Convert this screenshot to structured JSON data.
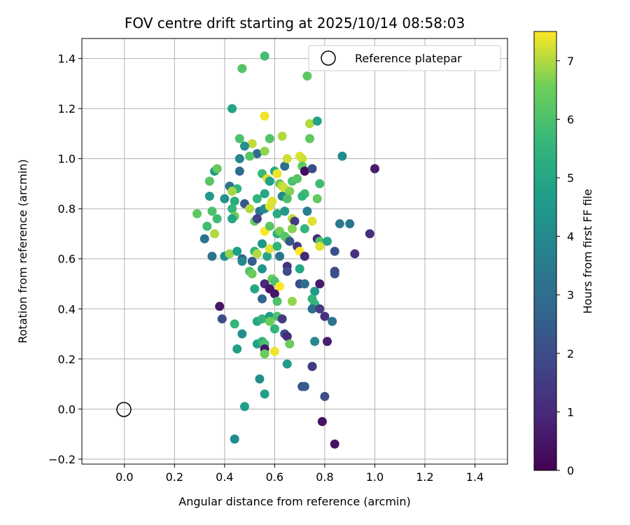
{
  "chart_data": {
    "type": "scatter",
    "title": "FOV centre drift starting at 2025/10/14 08:58:03",
    "xlabel": "Angular distance from reference (arcmin)",
    "ylabel": "Rotation from reference (arcmin)",
    "xlim": [
      -0.17,
      1.53
    ],
    "ylim": [
      -0.22,
      1.48
    ],
    "xticks": [
      0.0,
      0.2,
      0.4,
      0.6,
      0.8,
      1.0,
      1.2,
      1.4
    ],
    "xtick_labels": [
      "0.0",
      "0.2",
      "0.4",
      "0.6",
      "0.8",
      "1.0",
      "1.2",
      "1.4"
    ],
    "yticks": [
      -0.2,
      0.0,
      0.2,
      0.4,
      0.6,
      0.8,
      1.0,
      1.2,
      1.4
    ],
    "ytick_labels": [
      "−0.2",
      "0.0",
      "0.2",
      "0.4",
      "0.6",
      "0.8",
      "1.0",
      "1.2",
      "1.4"
    ],
    "grid": true,
    "legend": {
      "location": "top-right",
      "entries": [
        "Reference platepar"
      ]
    },
    "reference_point": {
      "x": 0.0,
      "y": 0.0,
      "label": "Reference platepar"
    },
    "colorbar": {
      "label": "Hours from first FF file",
      "colormap": "viridis",
      "range": [
        0,
        7.5
      ],
      "ticks": [
        0,
        1,
        2,
        3,
        4,
        5,
        6,
        7
      ],
      "tick_labels": [
        "0",
        "1",
        "2",
        "3",
        "4",
        "5",
        "6",
        "7"
      ]
    },
    "points": [
      [
        0.56,
        1.41,
        5.9
      ],
      [
        0.47,
        1.36,
        6.1
      ],
      [
        0.73,
        1.33,
        6.3
      ],
      [
        0.43,
        1.2,
        4.9
      ],
      [
        0.56,
        1.17,
        7.4
      ],
      [
        0.74,
        1.14,
        7.0
      ],
      [
        0.77,
        1.15,
        4.8
      ],
      [
        0.46,
        1.08,
        6.0
      ],
      [
        0.58,
        1.08,
        6.1
      ],
      [
        0.63,
        1.09,
        7.0
      ],
      [
        0.74,
        1.08,
        6.3
      ],
      [
        0.51,
        1.06,
        7.1
      ],
      [
        0.53,
        1.02,
        3.0
      ],
      [
        0.48,
        1.05,
        4.2
      ],
      [
        0.56,
        1.03,
        6.8
      ],
      [
        0.7,
        1.01,
        7.3
      ],
      [
        0.71,
        1.0,
        7.2
      ],
      [
        0.87,
        1.01,
        4.1
      ],
      [
        0.46,
        1.0,
        3.9
      ],
      [
        0.5,
        1.01,
        6.2
      ],
      [
        0.36,
        0.95,
        4.5
      ],
      [
        0.37,
        0.96,
        6.4
      ],
      [
        0.46,
        0.95,
        3.0
      ],
      [
        0.55,
        0.94,
        5.7
      ],
      [
        0.6,
        0.95,
        5.0
      ],
      [
        0.61,
        0.94,
        7.4
      ],
      [
        0.64,
        0.97,
        3.1
      ],
      [
        0.65,
        1.0,
        7.2
      ],
      [
        0.71,
        0.97,
        6.3
      ],
      [
        0.72,
        0.95,
        0.3
      ],
      [
        0.75,
        0.96,
        2.0
      ],
      [
        1.0,
        0.96,
        0.6
      ],
      [
        0.34,
        0.91,
        6.2
      ],
      [
        0.42,
        0.89,
        3.2
      ],
      [
        0.45,
        0.88,
        5.5
      ],
      [
        0.43,
        0.87,
        6.9
      ],
      [
        0.57,
        0.92,
        7.3
      ],
      [
        0.58,
        0.91,
        4.8
      ],
      [
        0.62,
        0.9,
        6.5
      ],
      [
        0.63,
        0.89,
        7.1
      ],
      [
        0.64,
        0.88,
        7.2
      ],
      [
        0.66,
        0.87,
        6.7
      ],
      [
        0.67,
        0.91,
        6.0
      ],
      [
        0.69,
        0.92,
        6.2
      ],
      [
        0.72,
        0.86,
        5.8
      ],
      [
        0.78,
        0.9,
        5.8
      ],
      [
        0.34,
        0.85,
        4.5
      ],
      [
        0.4,
        0.84,
        4.3
      ],
      [
        0.44,
        0.83,
        5.2
      ],
      [
        0.48,
        0.82,
        2.3
      ],
      [
        0.53,
        0.84,
        5.5
      ],
      [
        0.56,
        0.86,
        5.0
      ],
      [
        0.59,
        0.83,
        7.3
      ],
      [
        0.63,
        0.85,
        4.0
      ],
      [
        0.65,
        0.84,
        6.0
      ],
      [
        0.71,
        0.85,
        5.6
      ],
      [
        0.77,
        0.84,
        6.4
      ],
      [
        0.29,
        0.78,
        6.3
      ],
      [
        0.35,
        0.79,
        6.0
      ],
      [
        0.37,
        0.76,
        5.8
      ],
      [
        0.43,
        0.8,
        5.5
      ],
      [
        0.44,
        0.77,
        6.5
      ],
      [
        0.43,
        0.76,
        4.9
      ],
      [
        0.5,
        0.8,
        7.0
      ],
      [
        0.52,
        0.75,
        6.4
      ],
      [
        0.54,
        0.79,
        3.2
      ],
      [
        0.56,
        0.8,
        4.1
      ],
      [
        0.58,
        0.81,
        7.3
      ],
      [
        0.61,
        0.78,
        5.2
      ],
      [
        0.64,
        0.79,
        4.5
      ],
      [
        0.67,
        0.76,
        7.1
      ],
      [
        0.68,
        0.75,
        1.5
      ],
      [
        0.73,
        0.79,
        3.6
      ],
      [
        0.75,
        0.75,
        7.3
      ],
      [
        0.33,
        0.73,
        5.8
      ],
      [
        0.36,
        0.7,
        7.0
      ],
      [
        0.53,
        0.76,
        1.7
      ],
      [
        0.56,
        0.71,
        7.5
      ],
      [
        0.58,
        0.73,
        6.2
      ],
      [
        0.61,
        0.7,
        5.3
      ],
      [
        0.62,
        0.71,
        6.6
      ],
      [
        0.64,
        0.69,
        6.2
      ],
      [
        0.67,
        0.72,
        6.7
      ],
      [
        0.72,
        0.72,
        5.5
      ],
      [
        0.86,
        0.74,
        3.5
      ],
      [
        0.9,
        0.74,
        3.3
      ],
      [
        0.98,
        0.7,
        1.1
      ],
      [
        0.32,
        0.68,
        3.2
      ],
      [
        0.35,
        0.61,
        3.2
      ],
      [
        0.4,
        0.61,
        4.1
      ],
      [
        0.42,
        0.62,
        6.8
      ],
      [
        0.45,
        0.63,
        4.7
      ],
      [
        0.47,
        0.6,
        2.5
      ],
      [
        0.47,
        0.59,
        4.0
      ],
      [
        0.51,
        0.59,
        2.5
      ],
      [
        0.52,
        0.63,
        5.5
      ],
      [
        0.53,
        0.62,
        7.0
      ],
      [
        0.55,
        0.66,
        4.5
      ],
      [
        0.57,
        0.61,
        5.0
      ],
      [
        0.58,
        0.64,
        7.3
      ],
      [
        0.61,
        0.65,
        5.5
      ],
      [
        0.62,
        0.61,
        3.2
      ],
      [
        0.65,
        0.68,
        6.2
      ],
      [
        0.66,
        0.67,
        2.2
      ],
      [
        0.69,
        0.65,
        1.5
      ],
      [
        0.7,
        0.63,
        7.5
      ],
      [
        0.72,
        0.61,
        1.0
      ],
      [
        0.77,
        0.68,
        1.0
      ],
      [
        0.78,
        0.67,
        6.0
      ],
      [
        0.78,
        0.65,
        7.3
      ],
      [
        0.81,
        0.67,
        5.0
      ],
      [
        0.84,
        0.63,
        2.1
      ],
      [
        0.92,
        0.62,
        1.2
      ],
      [
        0.55,
        0.56,
        4.4
      ],
      [
        0.5,
        0.55,
        6.0
      ],
      [
        0.51,
        0.54,
        6.5
      ],
      [
        0.56,
        0.5,
        1.0
      ],
      [
        0.58,
        0.48,
        0.5
      ],
      [
        0.59,
        0.52,
        6.5
      ],
      [
        0.6,
        0.51,
        6.0
      ],
      [
        0.62,
        0.49,
        7.5
      ],
      [
        0.65,
        0.57,
        1.2
      ],
      [
        0.65,
        0.55,
        2.0
      ],
      [
        0.7,
        0.56,
        5.0
      ],
      [
        0.7,
        0.5,
        2.0
      ],
      [
        0.72,
        0.5,
        3.0
      ],
      [
        0.76,
        0.47,
        4.5
      ],
      [
        0.78,
        0.5,
        0.6
      ],
      [
        0.84,
        0.55,
        1.8
      ],
      [
        0.84,
        0.54,
        2.0
      ],
      [
        0.52,
        0.48,
        5.0
      ],
      [
        0.55,
        0.44,
        2.8
      ],
      [
        0.6,
        0.46,
        0.5
      ],
      [
        0.61,
        0.43,
        6.0
      ],
      [
        0.67,
        0.43,
        6.8
      ],
      [
        0.75,
        0.44,
        5.5
      ],
      [
        0.76,
        0.42,
        5.5
      ],
      [
        0.75,
        0.4,
        3.0
      ],
      [
        0.78,
        0.4,
        1.5
      ],
      [
        0.8,
        0.37,
        1.2
      ],
      [
        0.83,
        0.35,
        3.2
      ],
      [
        0.38,
        0.41,
        0.5
      ],
      [
        0.39,
        0.36,
        2.0
      ],
      [
        0.44,
        0.34,
        5.5
      ],
      [
        0.53,
        0.35,
        5.0
      ],
      [
        0.55,
        0.36,
        5.5
      ],
      [
        0.58,
        0.37,
        4.5
      ],
      [
        0.58,
        0.35,
        6.5
      ],
      [
        0.61,
        0.37,
        6.0
      ],
      [
        0.63,
        0.36,
        1.5
      ],
      [
        0.6,
        0.32,
        5.5
      ],
      [
        0.64,
        0.3,
        2.0
      ],
      [
        0.65,
        0.29,
        1.0
      ],
      [
        0.47,
        0.3,
        4.2
      ],
      [
        0.53,
        0.26,
        4.8
      ],
      [
        0.55,
        0.27,
        5.5
      ],
      [
        0.56,
        0.26,
        6.0
      ],
      [
        0.56,
        0.24,
        0.5
      ],
      [
        0.56,
        0.22,
        6.5
      ],
      [
        0.6,
        0.23,
        7.4
      ],
      [
        0.66,
        0.26,
        6.5
      ],
      [
        0.76,
        0.27,
        4.0
      ],
      [
        0.81,
        0.27,
        0.7
      ],
      [
        0.45,
        0.24,
        4.8
      ],
      [
        0.65,
        0.18,
        4.6
      ],
      [
        0.75,
        0.17,
        3.6
      ],
      [
        0.75,
        0.17,
        1.5
      ],
      [
        0.54,
        0.12,
        4.2
      ],
      [
        0.56,
        0.06,
        4.8
      ],
      [
        0.71,
        0.09,
        2.0
      ],
      [
        0.72,
        0.09,
        2.5
      ],
      [
        0.8,
        0.05,
        2.0
      ],
      [
        0.48,
        0.01,
        4.7
      ],
      [
        0.79,
        -0.05,
        0.4
      ],
      [
        0.44,
        -0.12,
        4.1
      ],
      [
        0.84,
        -0.14,
        0.4
      ]
    ]
  }
}
